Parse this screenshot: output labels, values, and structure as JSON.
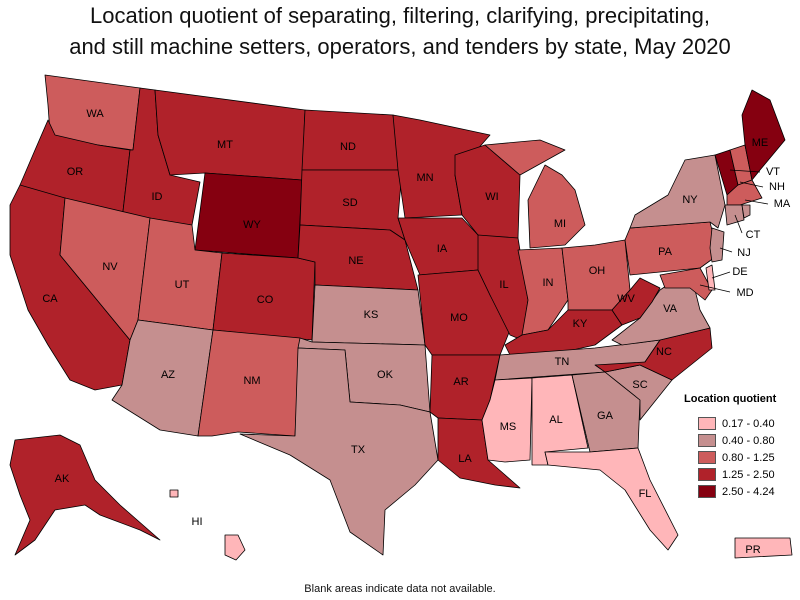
{
  "title_line1": "Location quotient of separating, filtering, clarifying, precipitating,",
  "title_line2": "and still machine setters, operators, and tenders by state, May 2020",
  "legend": {
    "title": "Location quotient",
    "items": [
      {
        "label": "0.17 - 0.40",
        "color": "#ffb6b9"
      },
      {
        "label": "0.40 - 0.80",
        "color": "#c58f8f"
      },
      {
        "label": "0.80 - 1.25",
        "color": "#cd5c5c"
      },
      {
        "label": "1.25 - 2.50",
        "color": "#b0222a"
      },
      {
        "label": "2.50 - 4.24",
        "color": "#850010"
      }
    ]
  },
  "note": "Blank areas indicate data not available.",
  "states": [
    {
      "abbr": "WA",
      "class": 2
    },
    {
      "abbr": "OR",
      "class": 3
    },
    {
      "abbr": "CA",
      "class": 3
    },
    {
      "abbr": "ID",
      "class": 3
    },
    {
      "abbr": "NV",
      "class": 2
    },
    {
      "abbr": "MT",
      "class": 3
    },
    {
      "abbr": "WY",
      "class": 4
    },
    {
      "abbr": "UT",
      "class": 2
    },
    {
      "abbr": "AZ",
      "class": 1
    },
    {
      "abbr": "CO",
      "class": 3
    },
    {
      "abbr": "NM",
      "class": 2
    },
    {
      "abbr": "ND",
      "class": 3
    },
    {
      "abbr": "SD",
      "class": 3
    },
    {
      "abbr": "NE",
      "class": 3
    },
    {
      "abbr": "KS",
      "class": 1
    },
    {
      "abbr": "OK",
      "class": 1
    },
    {
      "abbr": "TX",
      "class": 1
    },
    {
      "abbr": "MN",
      "class": 3
    },
    {
      "abbr": "IA",
      "class": 3
    },
    {
      "abbr": "MO",
      "class": 3
    },
    {
      "abbr": "AR",
      "class": 3
    },
    {
      "abbr": "LA",
      "class": 3
    },
    {
      "abbr": "WI",
      "class": 3
    },
    {
      "abbr": "IL",
      "class": 3
    },
    {
      "abbr": "MI",
      "class": 2
    },
    {
      "abbr": "IN",
      "class": 2
    },
    {
      "abbr": "OH",
      "class": 2
    },
    {
      "abbr": "KY",
      "class": 3
    },
    {
      "abbr": "TN",
      "class": 1
    },
    {
      "abbr": "MS",
      "class": 0
    },
    {
      "abbr": "AL",
      "class": 0
    },
    {
      "abbr": "GA",
      "class": 1
    },
    {
      "abbr": "FL",
      "class": 0
    },
    {
      "abbr": "SC",
      "class": 1
    },
    {
      "abbr": "NC",
      "class": 3
    },
    {
      "abbr": "VA",
      "class": 1
    },
    {
      "abbr": "WV",
      "class": 3
    },
    {
      "abbr": "PA",
      "class": 2
    },
    {
      "abbr": "NY",
      "class": 1
    },
    {
      "abbr": "VT",
      "class": 4
    },
    {
      "abbr": "NH",
      "class": 2
    },
    {
      "abbr": "ME",
      "class": 4
    },
    {
      "abbr": "MA",
      "class": 2
    },
    {
      "abbr": "CT",
      "class": 1
    },
    {
      "abbr": "RI",
      "class": 1
    },
    {
      "abbr": "NJ",
      "class": 1
    },
    {
      "abbr": "DE",
      "class": 0
    },
    {
      "abbr": "MD",
      "class": 2
    },
    {
      "abbr": "AK",
      "class": 3
    },
    {
      "abbr": "HI",
      "class": 0
    },
    {
      "abbr": "PR",
      "class": 0
    }
  ]
}
